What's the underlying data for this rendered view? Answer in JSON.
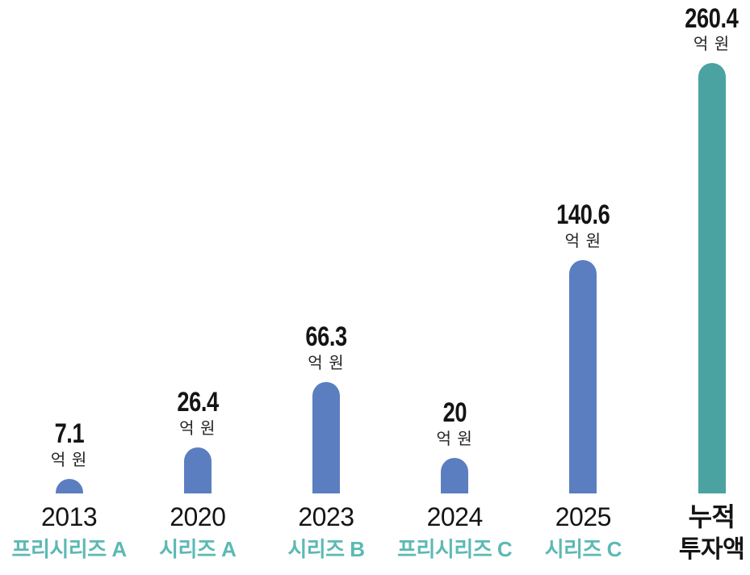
{
  "chart_data": {
    "type": "bar",
    "title": "",
    "unit_label": "억 원",
    "categories": [
      "2013 프리시리즈 A",
      "2020 시리즈 A",
      "2023 시리즈 B",
      "2024 프리시리즈 C",
      "2025 시리즈 C",
      "누적 투자액"
    ],
    "values": [
      7.1,
      26.4,
      66.3,
      20,
      140.6,
      260.4
    ],
    "ylim": [
      0,
      280
    ],
    "grid": false,
    "legend": false,
    "orientation": "vertical",
    "bar_style": "rounded-top"
  },
  "columns": [
    {
      "value": 7.1,
      "value_label": "7.1",
      "unit": "억 원",
      "line1": "2013",
      "line2": "프리시리즈 A",
      "kind": "round"
    },
    {
      "value": 26.4,
      "value_label": "26.4",
      "unit": "억 원",
      "line1": "2020",
      "line2": "시리즈 A",
      "kind": "round"
    },
    {
      "value": 66.3,
      "value_label": "66.3",
      "unit": "억 원",
      "line1": "2023",
      "line2": "시리즈 B",
      "kind": "round"
    },
    {
      "value": 20,
      "value_label": "20",
      "unit": "억 원",
      "line1": "2024",
      "line2": "프리시리즈 C",
      "kind": "round"
    },
    {
      "value": 140.6,
      "value_label": "140.6",
      "unit": "억 원",
      "line1": "2025",
      "line2": "시리즈 C",
      "kind": "round"
    },
    {
      "value": 260.4,
      "value_label": "260.4",
      "unit": "억 원",
      "line1": "누적",
      "line2": "투자액",
      "kind": "total"
    }
  ],
  "colors": {
    "round_bar": "#5b7ec1",
    "total_bar": "#4ba3a1",
    "series_label_teal": "#5cb9b4",
    "text_black": "#141414"
  }
}
